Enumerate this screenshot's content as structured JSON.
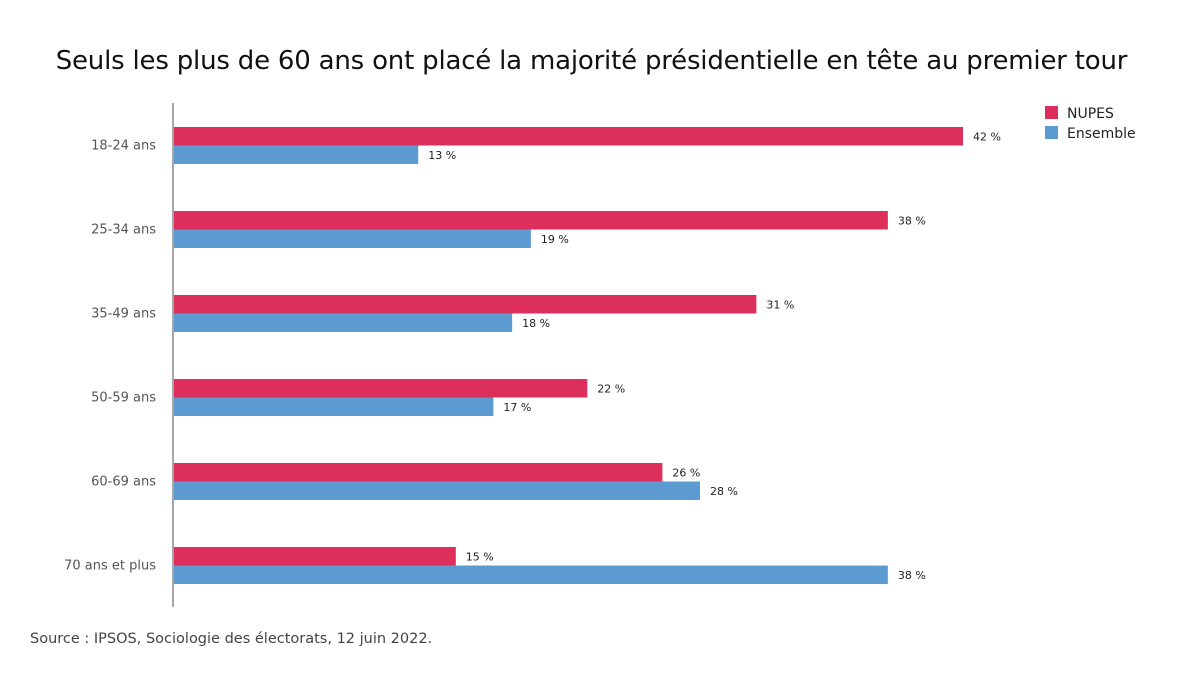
{
  "chart_data": {
    "type": "bar",
    "orientation": "horizontal",
    "title": "Seuls les plus de 60 ans ont placé la majorité présidentielle en tête au premier tour",
    "categories": [
      "18-24 ans",
      "25-34 ans",
      "35-49 ans",
      "50-59 ans",
      "60-69 ans",
      "70 ans et plus"
    ],
    "series": [
      {
        "name": "NUPES",
        "color": "#dc2f5b",
        "values": [
          42,
          38,
          31,
          22,
          26,
          15
        ],
        "labels": [
          "42 %",
          "38 %",
          "31 %",
          "22 %",
          "26 %",
          "15 %"
        ]
      },
      {
        "name": "Ensemble",
        "color": "#5b9bd1",
        "values": [
          13,
          19,
          18,
          17,
          28,
          38
        ],
        "labels": [
          "13 %",
          "19 %",
          "18 %",
          "17 %",
          "28 %",
          "38 %"
        ]
      }
    ],
    "xlim": [
      0,
      42
    ],
    "grid": false,
    "legend_position": "top-right",
    "source": "Source : IPSOS, Sociologie des électorats, 12 juin 2022."
  }
}
